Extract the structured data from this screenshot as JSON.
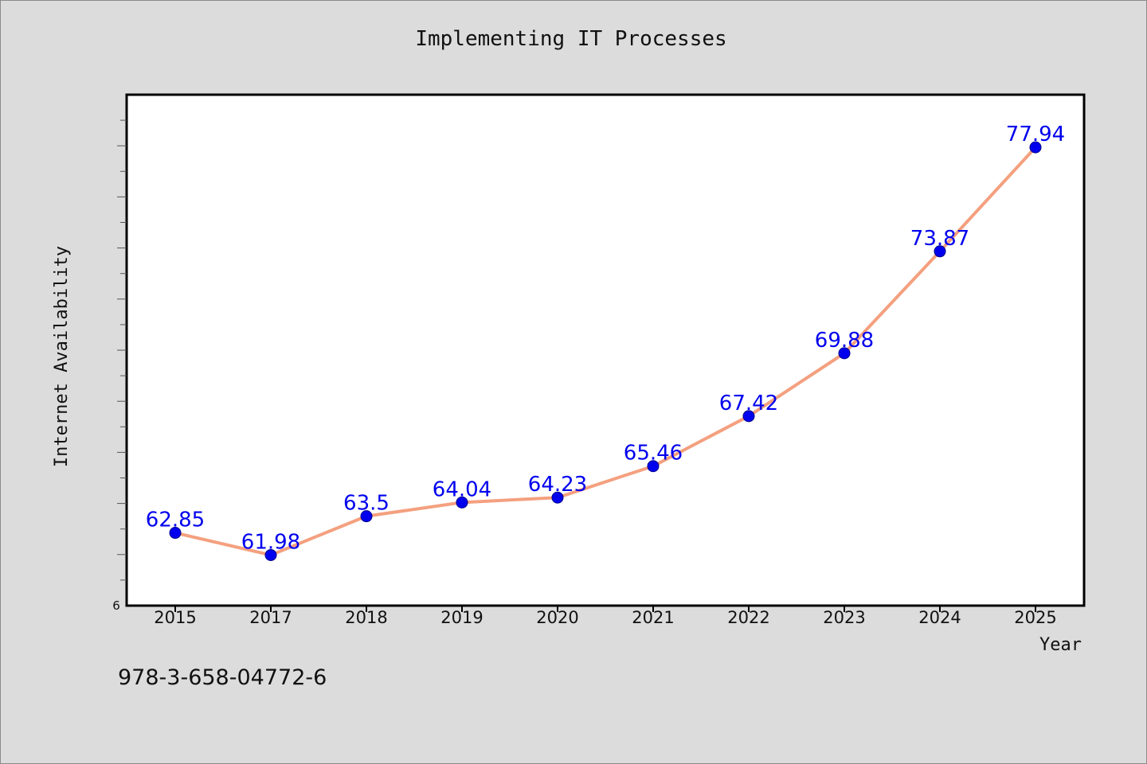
{
  "chart_data": {
    "type": "line",
    "title": "Implementing IT Processes",
    "xlabel": "Year",
    "ylabel": "Internet Availability",
    "categories": [
      "2015",
      "2017",
      "2018",
      "2019",
      "2020",
      "2021",
      "2022",
      "2023",
      "2024",
      "2025"
    ],
    "values": [
      62.85,
      61.98,
      63.5,
      64.04,
      64.23,
      65.46,
      67.42,
      69.88,
      73.87,
      77.94
    ],
    "data_labels": [
      "62.85",
      "61.98",
      "63.5",
      "64.04",
      "64.23",
      "65.46",
      "67.42",
      "69.88",
      "73.87",
      "77.94"
    ],
    "y_min_label": "6",
    "ylim": [
      60,
      80
    ],
    "grid": false,
    "legend": "none",
    "colors": {
      "line": "#f4a07f",
      "marker": "#0000ee",
      "label": "#0000ee",
      "background": "#dcdcdc",
      "plot_background": "#ffffff"
    }
  },
  "footer": {
    "isbn": "978-3-658-04772-6"
  }
}
